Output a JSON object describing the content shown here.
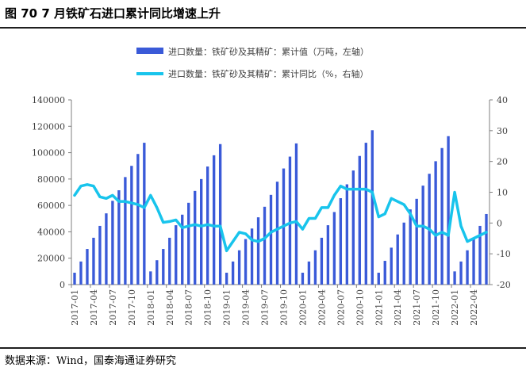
{
  "title": "图 70 7 月铁矿石进口累计同比增速上升",
  "source": "数据来源：Wind，国泰海通证券研究",
  "colors": {
    "bar": "#3a5ad8",
    "line": "#18c4ec",
    "axis": "#7f7f7f",
    "text": "#404040"
  },
  "chart_data": {
    "type": "bar+line",
    "legend_position": "top-right",
    "grid": false,
    "y_left": {
      "min": 0,
      "max": 140000,
      "ticks": [
        0,
        20000,
        40000,
        60000,
        80000,
        100000,
        120000,
        140000
      ]
    },
    "y_right": {
      "min": -20,
      "max": 40,
      "ticks": [
        -20,
        -10,
        0,
        10,
        20,
        30,
        40
      ]
    },
    "x_tick_labels": [
      "2017-01",
      "2017-04",
      "2017-07",
      "2017-10",
      "2018-01",
      "2018-04",
      "2018-07",
      "2018-10",
      "2019-01",
      "2019-04",
      "2019-07",
      "2019-10",
      "2020-01",
      "2020-04",
      "2020-07",
      "2020-10",
      "2021-01",
      "2021-04",
      "2021-07",
      "2021-10",
      "2022-01",
      "2022-04"
    ],
    "series": [
      {
        "name": "进口数量：铁矿砂及其精矿：累计值（万吨，左轴）",
        "kind": "bar",
        "axis": "left",
        "values": [
          9000,
          17500,
          27000,
          35500,
          44500,
          54000,
          63500,
          71500,
          81500,
          90000,
          99000,
          107500,
          10000,
          18500,
          27000,
          35500,
          45000,
          53000,
          62000,
          71000,
          80000,
          89500,
          98000,
          106500,
          9000,
          17500,
          26000,
          34500,
          42500,
          51000,
          59000,
          68000,
          78000,
          88000,
          97000,
          107000,
          9000,
          17500,
          26000,
          35500,
          45000,
          55000,
          65500,
          76000,
          86500,
          97500,
          107500,
          117000,
          9000,
          18000,
          28000,
          38000,
          47000,
          57000,
          65000,
          75000,
          84000,
          93500,
          103500,
          112500,
          10000,
          17500,
          26000,
          35000,
          44500,
          53500
        ]
      },
      {
        "name": "进口数量：铁矿砂及其精矿：累计同比（%，右轴）",
        "kind": "line",
        "axis": "right",
        "values": [
          9,
          12,
          12.5,
          12,
          8.5,
          8,
          9,
          7,
          7,
          6.5,
          6,
          5,
          9,
          5,
          0.2,
          0.5,
          1,
          -1.5,
          -1,
          -0.5,
          -1,
          -0.5,
          -1,
          -1,
          -9,
          -6,
          -3,
          -3.5,
          -5.5,
          -6,
          -5,
          -3,
          -2,
          -1,
          0,
          0.5,
          -2,
          1.5,
          1.5,
          5,
          5,
          9,
          12,
          11,
          11,
          11,
          11,
          10,
          2,
          3,
          8,
          7,
          6,
          3,
          -1,
          -1,
          -2,
          -4,
          -3,
          -4,
          10,
          -1,
          -6,
          -5,
          -4,
          -3
        ]
      }
    ]
  }
}
